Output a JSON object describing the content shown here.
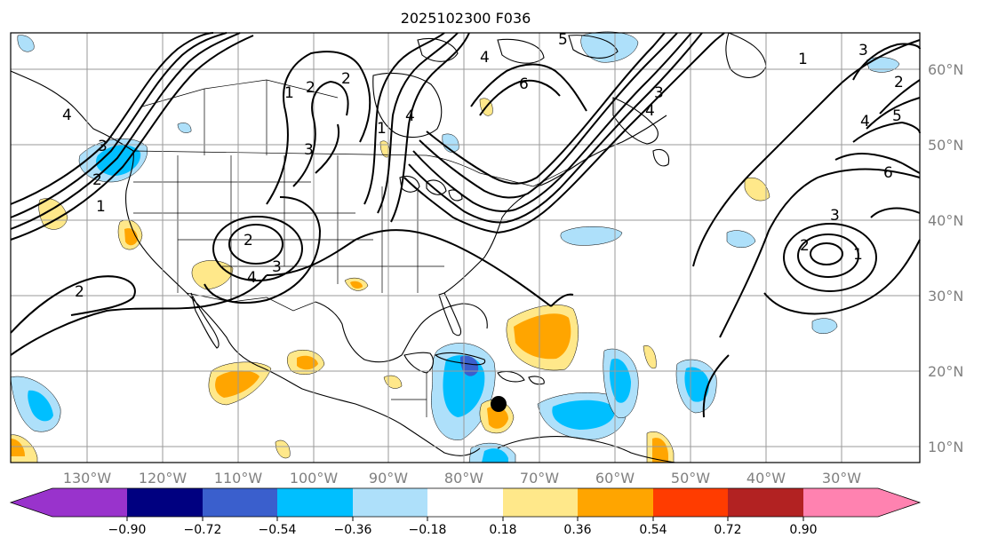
{
  "title": "2025102300 F036",
  "map": {
    "lon_labels": [
      "130°W",
      "120°W",
      "110°W",
      "100°W",
      "90°W",
      "80°W",
      "70°W",
      "60°W",
      "50°W",
      "40°W",
      "30°W"
    ],
    "lat_labels": [
      "60°N",
      "50°N",
      "40°N",
      "30°N",
      "20°N",
      "10°N"
    ],
    "contour_labels": [
      "1",
      "2",
      "3",
      "4",
      "2",
      "3",
      "4",
      "2",
      "1",
      "2",
      "3",
      "4",
      "6",
      "4",
      "1",
      "2",
      "3",
      "4",
      "5",
      "6",
      "3",
      "4",
      "5",
      "1",
      "2",
      "3",
      "1",
      "2"
    ]
  },
  "colorbar": {
    "ticks": [
      "−0.90",
      "−0.72",
      "−0.54",
      "−0.36",
      "−0.18",
      "0.18",
      "0.36",
      "0.54",
      "0.72",
      "0.90"
    ],
    "colors": [
      "#9933cc",
      "#000080",
      "#3a5fcd",
      "#00bfff",
      "#aee0fa",
      "#ffffff",
      "#ffe88a",
      "#ffa500",
      "#ff3c00",
      "#b22222",
      "#ff82b0"
    ]
  },
  "colors": {
    "land": "#ffffff",
    "lines": "#000000",
    "grid": "#9a9a9a",
    "axis_label": "#808080"
  }
}
